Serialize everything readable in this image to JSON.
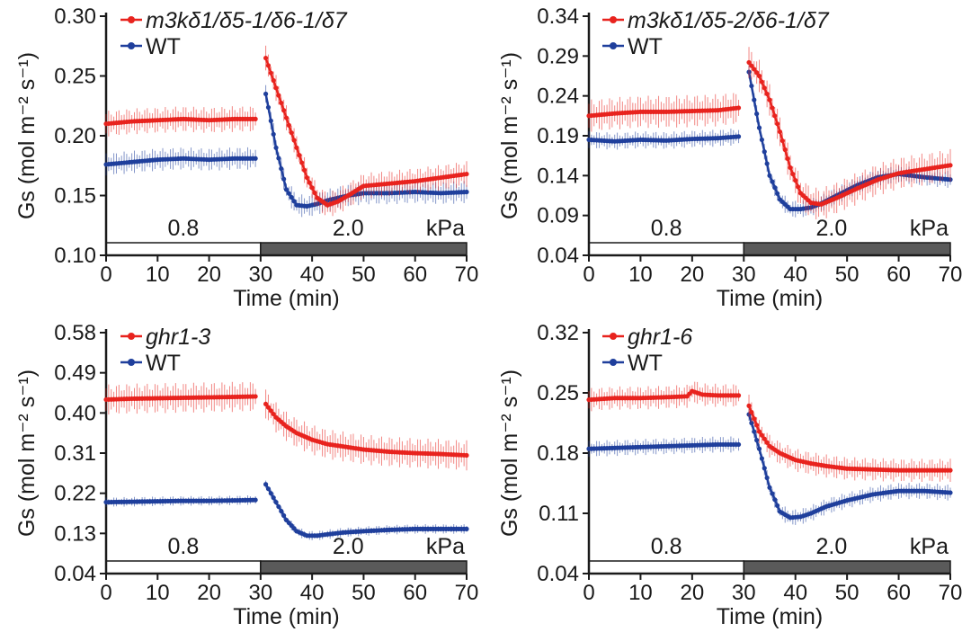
{
  "chart_data": [
    {
      "type": "line",
      "panel": "top-left",
      "xlabel": "Time (min)",
      "ylabel": "Gs (mol m⁻² s⁻¹)",
      "xlim": [
        0,
        70
      ],
      "ylim": [
        0.1,
        0.3
      ],
      "xticks": [
        "0",
        "10",
        "20",
        "30",
        "40",
        "50",
        "60",
        "70"
      ],
      "yticks": [
        "0.10",
        "0.15",
        "0.20",
        "0.25",
        "0.30"
      ],
      "vpd_labels": [
        "0.8",
        "2.0"
      ],
      "vpd_unit": "kPa",
      "vpd_switch_time": 30,
      "series": [
        {
          "name": "m3kδ1/δ5-1/δ6-1/δ7",
          "color": "#e8231e",
          "x": [
            0,
            5,
            10,
            15,
            20,
            25,
            29,
            31,
            33,
            35,
            37,
            39,
            41,
            43,
            45,
            47,
            50,
            55,
            60,
            65,
            70
          ],
          "y": [
            0.21,
            0.212,
            0.213,
            0.214,
            0.213,
            0.214,
            0.214,
            0.265,
            0.24,
            0.215,
            0.19,
            0.165,
            0.148,
            0.142,
            0.145,
            0.15,
            0.158,
            0.16,
            0.162,
            0.165,
            0.168
          ],
          "err": 0.008
        },
        {
          "name": "WT",
          "color": "#1f3f9c",
          "x": [
            0,
            5,
            10,
            15,
            20,
            25,
            29,
            31,
            33,
            35,
            37,
            39,
            41,
            43,
            45,
            47,
            50,
            55,
            60,
            65,
            70
          ],
          "y": [
            0.176,
            0.178,
            0.18,
            0.181,
            0.18,
            0.181,
            0.181,
            0.235,
            0.19,
            0.155,
            0.142,
            0.141,
            0.143,
            0.146,
            0.148,
            0.15,
            0.152,
            0.152,
            0.153,
            0.152,
            0.153
          ],
          "err": 0.007
        }
      ]
    },
    {
      "type": "line",
      "panel": "top-right",
      "xlabel": "Time (min)",
      "ylabel": "Gs (mol m⁻² s⁻¹)",
      "xlim": [
        0,
        70
      ],
      "ylim": [
        0.04,
        0.34
      ],
      "xticks": [
        "0",
        "10",
        "20",
        "30",
        "40",
        "50",
        "60",
        "70"
      ],
      "yticks": [
        "0.04",
        "0.09",
        "0.14",
        "0.19",
        "0.24",
        "0.29",
        "0.34"
      ],
      "vpd_labels": [
        "0.8",
        "2.0"
      ],
      "vpd_unit": "kPa",
      "vpd_switch_time": 30,
      "series": [
        {
          "name": "m3kδ1/δ5-2/δ6-1/δ7",
          "color": "#e8231e",
          "x": [
            0,
            5,
            10,
            15,
            20,
            25,
            29,
            31,
            33,
            35,
            37,
            39,
            41,
            43,
            45,
            48,
            52,
            56,
            60,
            65,
            70
          ],
          "y": [
            0.215,
            0.218,
            0.22,
            0.22,
            0.221,
            0.222,
            0.225,
            0.282,
            0.265,
            0.235,
            0.195,
            0.15,
            0.118,
            0.106,
            0.104,
            0.112,
            0.124,
            0.135,
            0.143,
            0.148,
            0.153
          ],
          "err": 0.015
        },
        {
          "name": "WT",
          "color": "#1f3f9c",
          "x": [
            0,
            5,
            10,
            15,
            20,
            25,
            29,
            31,
            33,
            35,
            37,
            39,
            41,
            43,
            45,
            48,
            52,
            56,
            60,
            65,
            70
          ],
          "y": [
            0.185,
            0.183,
            0.185,
            0.184,
            0.186,
            0.187,
            0.189,
            0.27,
            0.2,
            0.14,
            0.11,
            0.098,
            0.098,
            0.1,
            0.105,
            0.115,
            0.128,
            0.138,
            0.142,
            0.138,
            0.135
          ],
          "err": 0.008
        }
      ]
    },
    {
      "type": "line",
      "panel": "bottom-left",
      "xlabel": "Time (min)",
      "ylabel": "Gs (mol m⁻² s⁻¹)",
      "xlim": [
        0,
        70
      ],
      "ylim": [
        0.04,
        0.58
      ],
      "xticks": [
        "0",
        "10",
        "20",
        "30",
        "40",
        "50",
        "60",
        "70"
      ],
      "yticks": [
        "0.04",
        "0.13",
        "0.22",
        "0.31",
        "0.40",
        "0.49",
        "0.58"
      ],
      "vpd_labels": [
        "0.8",
        "2.0"
      ],
      "vpd_unit": "kPa",
      "vpd_switch_time": 30,
      "series": [
        {
          "name": "ghr1-3",
          "color": "#e8231e",
          "x": [
            0,
            5,
            10,
            15,
            20,
            25,
            29,
            31,
            33,
            35,
            37,
            40,
            43,
            46,
            50,
            55,
            60,
            65,
            70
          ],
          "y": [
            0.43,
            0.432,
            0.433,
            0.434,
            0.435,
            0.436,
            0.437,
            0.42,
            0.39,
            0.37,
            0.355,
            0.34,
            0.33,
            0.325,
            0.318,
            0.313,
            0.31,
            0.308,
            0.305
          ],
          "err": 0.025
        },
        {
          "name": "WT",
          "color": "#1f3f9c",
          "x": [
            0,
            5,
            10,
            15,
            20,
            25,
            29,
            31,
            33,
            35,
            37,
            39,
            41,
            43,
            46,
            50,
            55,
            60,
            65,
            70
          ],
          "y": [
            0.2,
            0.201,
            0.202,
            0.203,
            0.203,
            0.204,
            0.205,
            0.24,
            0.2,
            0.16,
            0.135,
            0.125,
            0.125,
            0.128,
            0.132,
            0.135,
            0.138,
            0.14,
            0.14,
            0.14
          ],
          "err": 0.008
        }
      ]
    },
    {
      "type": "line",
      "panel": "bottom-right",
      "xlabel": "Time (min)",
      "ylabel": "Gs (mol m⁻² s⁻¹)",
      "xlim": [
        0,
        70
      ],
      "ylim": [
        0.04,
        0.32
      ],
      "xticks": [
        "0",
        "10",
        "20",
        "30",
        "40",
        "50",
        "60",
        "70"
      ],
      "yticks": [
        "0.04",
        "0.11",
        "0.18",
        "0.25",
        "0.32"
      ],
      "vpd_labels": [
        "0.8",
        "2.0"
      ],
      "vpd_unit": "kPa",
      "vpd_switch_time": 30,
      "series": [
        {
          "name": "ghr1-6",
          "color": "#e8231e",
          "x": [
            0,
            5,
            10,
            15,
            19,
            20,
            22,
            25,
            29,
            31,
            33,
            35,
            37,
            40,
            43,
            46,
            50,
            55,
            60,
            65,
            70
          ],
          "y": [
            0.242,
            0.244,
            0.244,
            0.245,
            0.246,
            0.252,
            0.248,
            0.247,
            0.247,
            0.235,
            0.205,
            0.188,
            0.18,
            0.172,
            0.168,
            0.165,
            0.162,
            0.161,
            0.16,
            0.16,
            0.16
          ],
          "err": 0.01
        },
        {
          "name": "WT",
          "color": "#1f3f9c",
          "x": [
            0,
            5,
            10,
            15,
            20,
            25,
            29,
            31,
            33,
            35,
            37,
            39,
            41,
            43,
            46,
            50,
            55,
            60,
            65,
            70
          ],
          "y": [
            0.185,
            0.186,
            0.187,
            0.188,
            0.189,
            0.19,
            0.19,
            0.225,
            0.185,
            0.14,
            0.112,
            0.105,
            0.106,
            0.11,
            0.118,
            0.125,
            0.132,
            0.136,
            0.136,
            0.134
          ],
          "err": 0.007
        }
      ]
    }
  ]
}
